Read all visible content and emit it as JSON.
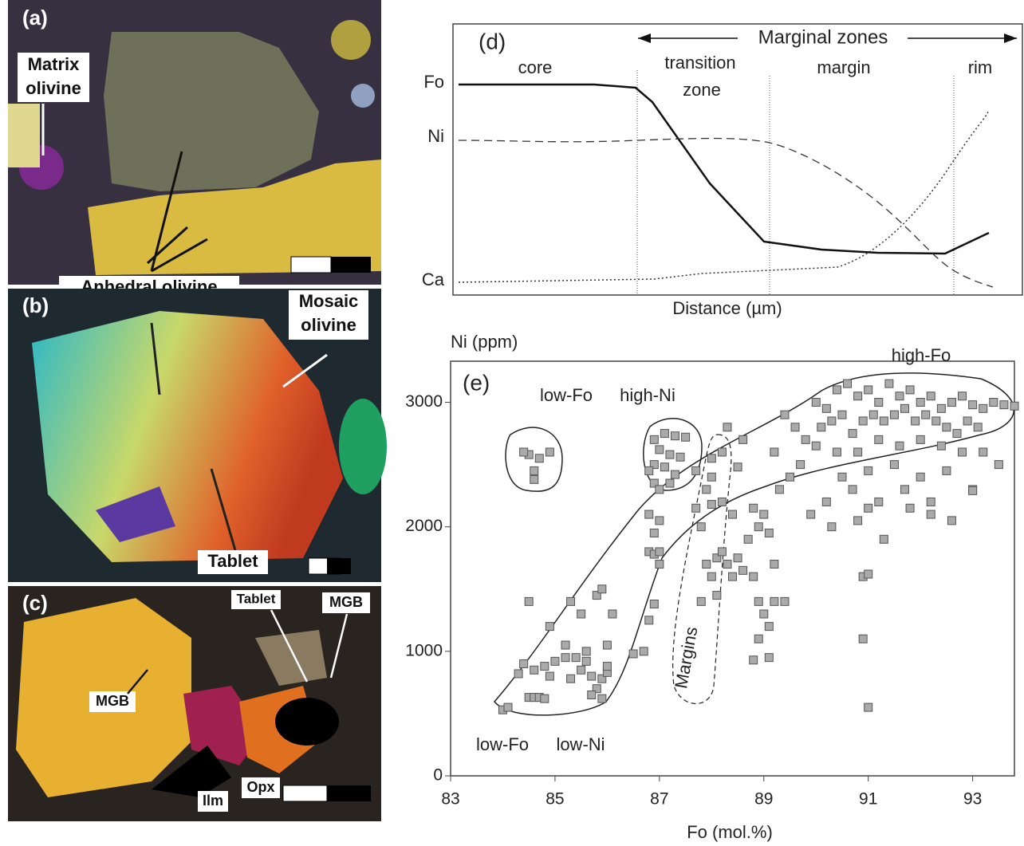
{
  "micrographs": {
    "a": {
      "panel": "(a)",
      "matrix": [
        "Matrix",
        "olivine"
      ],
      "anhedral": "Anhedral olivine"
    },
    "b": {
      "panel": "(b)",
      "mosaic": [
        "Mosaic",
        "olivine"
      ],
      "tablet": "Tablet"
    },
    "c": {
      "panel": "(c)",
      "tablet": "Tablet",
      "mgb_right": "MGB",
      "mgb_left": "MGB",
      "ilm": "Ilm",
      "opx": "Opx"
    }
  },
  "diagram": {
    "panel": "(d)",
    "header": "Marginal zones",
    "zones": [
      [
        "core"
      ],
      [
        "transition",
        "zone"
      ],
      [
        "margin"
      ],
      [
        "rim"
      ]
    ],
    "elements": [
      "Fo",
      "Ni",
      "Ca"
    ],
    "xlabel": "Distance (µm)"
  },
  "chart_data": {
    "type": "scatter",
    "panel": "(e)",
    "ylabel": "Ni (ppm)",
    "xlabel": "Fo (mol.%)",
    "color": "#aaaaaa",
    "annotations": [
      "low-Fo",
      "high-Ni",
      "high-Fo",
      "low-Fo",
      "low-Ni",
      "Margins"
    ],
    "xlim": [
      83,
      93.8
    ],
    "ylim": [
      0,
      3330
    ],
    "xticks": [
      83,
      85,
      87,
      89,
      91,
      93
    ],
    "yticks": [
      0,
      1000,
      2000,
      3000
    ],
    "x": [
      84.5,
      84.7,
      84.6,
      84.6,
      84.9,
      84.4,
      84.0,
      84.1,
      84.5,
      84.6,
      84.7,
      84.8,
      84.4,
      84.6,
      84.8,
      85.0,
      85.2,
      85.4,
      85.6,
      85.5,
      85.7,
      85.9,
      86.0,
      85.8,
      85.7,
      85.9,
      86.0,
      84.3,
      84.9,
      84.5,
      85.3,
      85.5,
      85.8,
      85.9,
      86.1,
      86.0,
      86.5,
      85.2,
      84.9,
      85.3,
      85.6,
      86.9,
      87.1,
      87.3,
      87.0,
      87.2,
      86.9,
      87.1,
      87.3,
      86.9,
      87.2,
      87.0,
      87.4,
      86.8,
      86.8,
      87.0,
      86.9,
      86.8,
      86.9,
      87.0,
      87.0,
      86.9,
      86.8,
      86.7,
      87.5,
      87.7,
      87.9,
      87.7,
      87.8,
      88.0,
      88.2,
      88.3,
      88.6,
      88.5,
      88.2,
      88.0,
      88.4,
      88.8,
      88.9,
      89.0,
      89.1,
      88.7,
      88.1,
      88.3,
      88.5,
      88.2,
      87.9,
      88.6,
      88.4,
      88.8,
      89.2,
      88.0,
      88.9,
      89.0,
      89.1,
      89.2,
      88.9,
      88.8,
      89.1,
      87.8,
      88.1,
      89.4,
      88.0,
      89.3,
      89.5,
      89.7,
      89.2,
      89.8,
      89.6,
      89.4,
      90.0,
      90.2,
      90.4,
      90.6,
      90.8,
      91.0,
      91.2,
      91.4,
      91.6,
      91.8,
      92.0,
      92.2,
      92.4,
      92.6,
      92.8,
      93.0,
      93.2,
      93.4,
      93.6,
      93.8,
      90.1,
      90.3,
      90.5,
      90.7,
      90.9,
      91.1,
      91.3,
      91.5,
      91.7,
      91.9,
      92.1,
      92.3,
      92.5,
      92.7,
      92.9,
      93.1,
      90.0,
      90.4,
      90.8,
      91.2,
      91.6,
      92.0,
      92.4,
      92.8,
      93.2,
      93.5,
      90.5,
      91.0,
      91.5,
      92.0,
      92.5,
      93.0,
      90.2,
      90.7,
      91.2,
      91.7,
      92.2,
      92.6,
      89.9,
      90.3,
      90.8,
      91.0,
      91.3,
      90.9,
      91.0,
      90.9,
      91.0,
      91.8,
      92.2,
      93.0
    ],
    "values": [
      2580,
      2550,
      2450,
      2380,
      2600,
      2600,
      530,
      550,
      630,
      630,
      630,
      620,
      900,
      850,
      880,
      920,
      950,
      950,
      920,
      850,
      800,
      780,
      830,
      700,
      650,
      620,
      880,
      820,
      1200,
      1400,
      1400,
      1300,
      1450,
      1500,
      1300,
      1050,
      980,
      1050,
      800,
      780,
      1000,
      2700,
      2750,
      2730,
      2620,
      2580,
      2500,
      2480,
      2420,
      2350,
      2350,
      2300,
      2560,
      2450,
      2100,
      2050,
      1950,
      1800,
      1780,
      1800,
      1700,
      1380,
      1250,
      1000,
      2720,
      2450,
      2300,
      2150,
      2000,
      2550,
      2600,
      2800,
      2700,
      2480,
      2200,
      2180,
      2100,
      2150,
      2000,
      2100,
      1950,
      1900,
      1750,
      1700,
      1750,
      1800,
      1700,
      1650,
      1600,
      1600,
      1700,
      1600,
      1400,
      1300,
      1200,
      1400,
      1100,
      930,
      950,
      1400,
      1450,
      1400,
      2400,
      2300,
      2400,
      2500,
      2600,
      2700,
      2800,
      2900,
      3000,
      2950,
      3100,
      3150,
      3050,
      3100,
      3000,
      3150,
      3050,
      3100,
      3000,
      3050,
      2950,
      3000,
      3050,
      2980,
      2950,
      3000,
      2980,
      2970,
      2800,
      2850,
      2900,
      2750,
      2850,
      2900,
      2850,
      2900,
      2950,
      2850,
      2900,
      2850,
      2800,
      2750,
      2850,
      2800,
      2650,
      2600,
      2600,
      2700,
      2650,
      2700,
      2650,
      2600,
      2600,
      2500,
      2400,
      2450,
      2500,
      2400,
      2450,
      2300,
      2200,
      2300,
      2200,
      2300,
      2200,
      2050,
      2100,
      2000,
      2050,
      2150,
      1900,
      1600,
      1620,
      1100,
      550,
      2150,
      2100,
      2290
    ]
  }
}
